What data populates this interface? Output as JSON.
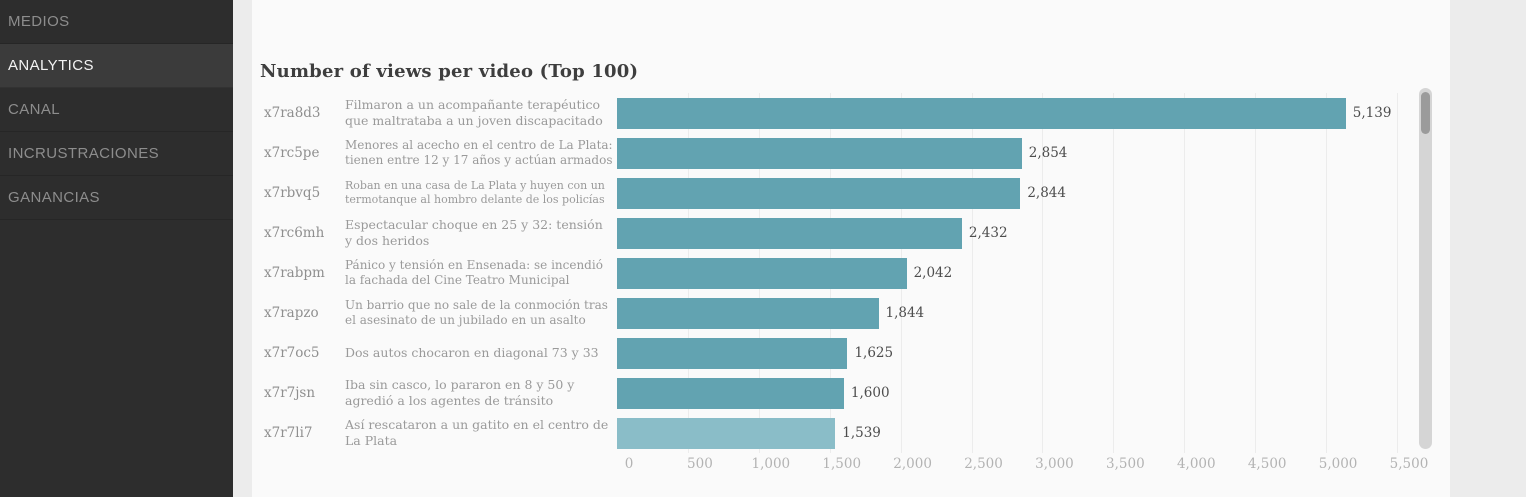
{
  "sidebar": {
    "items": [
      {
        "label": "MEDIOS",
        "active": false
      },
      {
        "label": "ANALYTICS",
        "active": true
      },
      {
        "label": "CANAL",
        "active": false
      },
      {
        "label": "INCRUSTRACIONES",
        "active": false
      },
      {
        "label": "GANANCIAS",
        "active": false
      }
    ]
  },
  "main": {
    "title": "Number of views per video (Top 100)"
  },
  "chart_data": {
    "type": "bar",
    "orientation": "horizontal",
    "title": "Number of views per video (Top 100)",
    "xlabel": "",
    "ylabel": "",
    "xlim": [
      0,
      5500
    ],
    "grid": true,
    "x_tick_values": [
      0,
      500,
      1000,
      1500,
      2000,
      2500,
      3000,
      3500,
      4000,
      4500,
      5000,
      5500
    ],
    "x_tick_labels": [
      "0",
      "500",
      "1,000",
      "1,500",
      "2,000",
      "2,500",
      "3,000",
      "3,500",
      "4,000",
      "4,500",
      "5,000",
      "5,500"
    ],
    "bar_color": "#62a3b1",
    "highlight_bar_color": "#8abdc8",
    "bars": [
      {
        "id": "x7ra8d3",
        "title": "Filmaron a un acompañante terapéutico que maltrataba a un joven discapacitado",
        "value": 5139,
        "label": "5,139",
        "highlight": false
      },
      {
        "id": "x7rc5pe",
        "title": "Menores al acecho en el centro de La Plata: tienen entre 12 y 17 años y actúan armados",
        "value": 2854,
        "label": "2,854",
        "highlight": false
      },
      {
        "id": "x7rbvq5",
        "title": "Roban en una casa de La Plata y huyen con un termotanque al hombro delante de los policías",
        "value": 2844,
        "label": "2,844",
        "highlight": false
      },
      {
        "id": "x7rc6mh",
        "title": "Espectacular choque en 25 y 32: tensión y dos heridos",
        "value": 2432,
        "label": "2,432",
        "highlight": false
      },
      {
        "id": "x7rabpm",
        "title": "Pánico y tensión en Ensenada: se incendió la fachada del Cine Teatro Municipal",
        "value": 2042,
        "label": "2,042",
        "highlight": false
      },
      {
        "id": "x7rapzo",
        "title": "Un barrio que no sale de la conmoción tras el asesinato de un jubilado en un asalto",
        "value": 1844,
        "label": "1,844",
        "highlight": false
      },
      {
        "id": "x7r7oc5",
        "title": "Dos autos chocaron en diagonal 73 y 33",
        "value": 1625,
        "label": "1,625",
        "highlight": false
      },
      {
        "id": "x7r7jsn",
        "title": "Iba sin casco, lo pararon en 8 y 50 y agredió a los agentes de tránsito",
        "value": 1600,
        "label": "1,600",
        "highlight": false
      },
      {
        "id": "x7r7li7",
        "title": "Así rescataron a un gatito en el centro de La Plata",
        "value": 1539,
        "label": "1,539",
        "highlight": true
      }
    ]
  }
}
